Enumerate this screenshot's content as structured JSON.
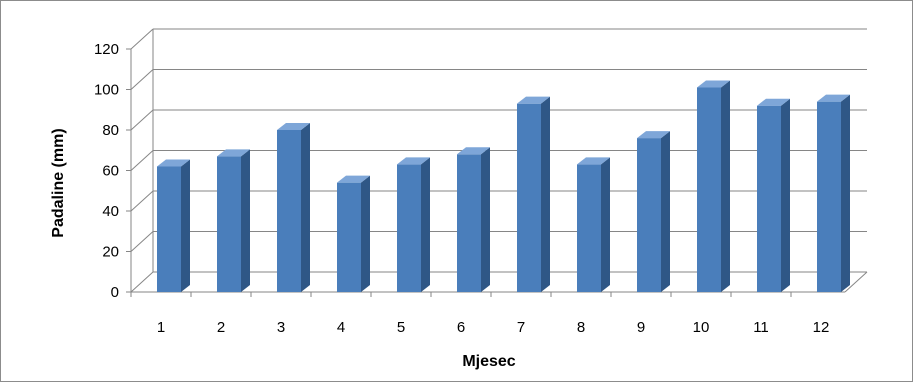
{
  "chart_data": {
    "type": "bar",
    "title": "",
    "xlabel": "Mjesec",
    "ylabel": "Padaline (mm)",
    "categories": [
      "1",
      "2",
      "3",
      "4",
      "5",
      "6",
      "7",
      "8",
      "9",
      "10",
      "11",
      "12"
    ],
    "values": [
      62,
      67,
      80,
      54,
      63,
      68,
      93,
      63,
      76,
      101,
      92,
      94
    ],
    "yticks": [
      "0",
      "20",
      "40",
      "60",
      "80",
      "100",
      "120"
    ],
    "ylim": [
      0,
      120
    ],
    "grid": true,
    "legend": "none",
    "style": "3d-column",
    "colors": {
      "bar_front": "#4a7ebb",
      "bar_side": "#2f5786",
      "bar_top": "#7ea6d8",
      "grid": "#868686"
    }
  }
}
